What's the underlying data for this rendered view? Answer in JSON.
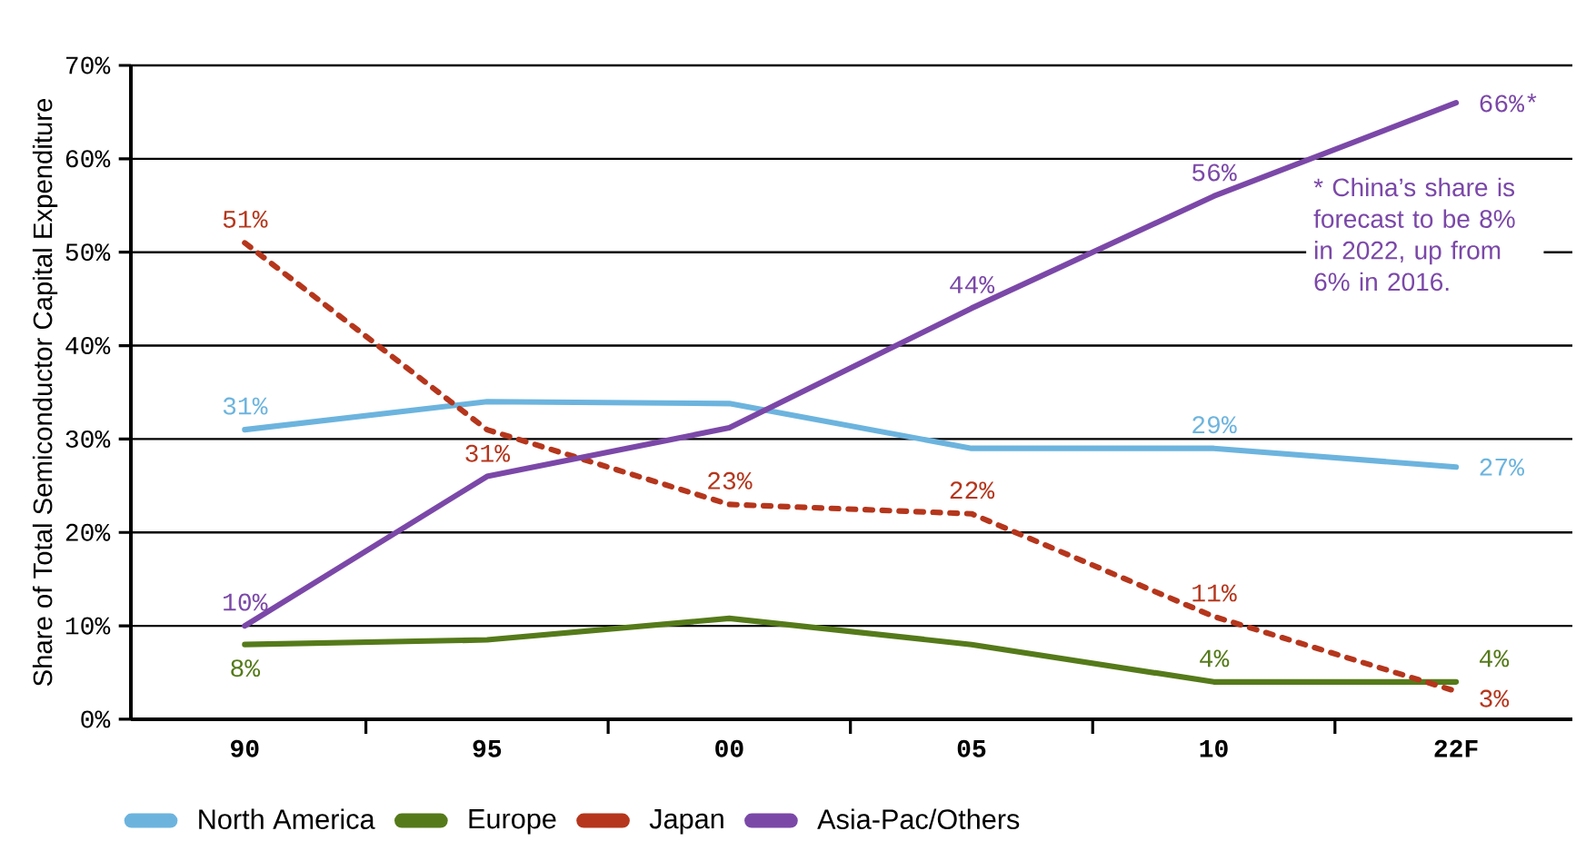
{
  "chart_data": {
    "type": "line",
    "ylabel": "Share of Total Semiconductor Capital Expenditure",
    "categories": [
      "90",
      "95",
      "00",
      "05",
      "10",
      "22F"
    ],
    "series": [
      {
        "name": "North America",
        "color": "#6cb4de",
        "values": [
          31,
          34,
          33.8,
          29,
          29,
          27
        ],
        "value_labels": [
          "31%",
          null,
          null,
          null,
          "29%",
          "27%"
        ]
      },
      {
        "name": "Europe",
        "color": "#557a1a",
        "values": [
          8,
          8.5,
          10.8,
          8,
          4,
          4
        ],
        "value_labels": [
          "8%",
          null,
          null,
          null,
          "4%",
          "4%"
        ]
      },
      {
        "name": "Japan",
        "color": "#b5361c",
        "line_style": "dashed",
        "values": [
          51,
          31,
          23,
          22,
          11,
          3
        ],
        "value_labels": [
          "51%",
          "31%",
          "23%",
          "22%",
          "11%",
          "3%"
        ]
      },
      {
        "name": "Asia-Pac/Others",
        "color": "#7b48a8",
        "values": [
          10,
          26,
          31.2,
          44,
          56,
          66
        ],
        "value_labels": [
          "10%",
          null,
          null,
          "44%",
          "56%",
          "66%*"
        ]
      }
    ],
    "ylim": [
      0,
      70
    ],
    "yticks": [
      {
        "value": 0,
        "label": "0%"
      },
      {
        "value": 10,
        "label": "10%"
      },
      {
        "value": 20,
        "label": "20%"
      },
      {
        "value": 30,
        "label": "30%"
      },
      {
        "value": 40,
        "label": "40%"
      },
      {
        "value": 50,
        "label": "50%"
      },
      {
        "value": 60,
        "label": "60%"
      },
      {
        "value": 70,
        "label": "70%"
      }
    ],
    "grid": "y",
    "legend": "bottom",
    "annotations": [
      "* China’s share is forecast to be 8% in 2022, up from 6% in 2016."
    ]
  }
}
